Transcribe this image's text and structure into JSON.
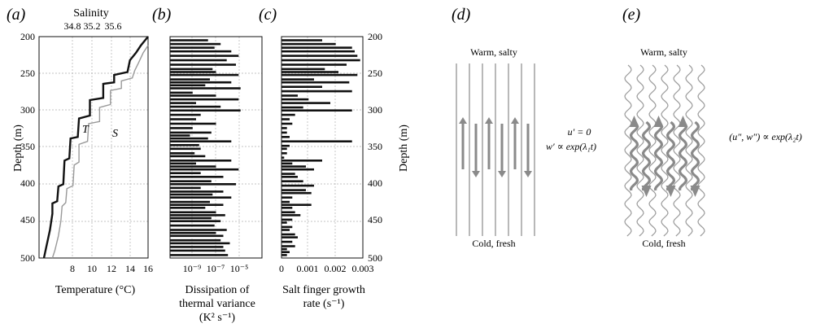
{
  "panels": {
    "a": {
      "letter": "(a)",
      "top_title": "Salinity",
      "top_ticks": [
        "34.8",
        "35.2",
        "35.6"
      ],
      "y_label": "Depth (m)",
      "y_ticks": [
        "200",
        "250",
        "300",
        "350",
        "400",
        "450",
        "500"
      ],
      "x_ticks": [
        "8",
        "10",
        "12",
        "14",
        "16"
      ],
      "x_label": "Temperature (°C)",
      "label_T": "T",
      "label_S": "S"
    },
    "b": {
      "letter": "(b)",
      "x_ticks": [
        "10⁻⁹",
        "10⁻⁷",
        "10⁻⁵"
      ],
      "x_label_line1": "Dissipation of",
      "x_label_line2": "thermal variance",
      "x_label_line3": "(K² s⁻¹)"
    },
    "c": {
      "letter": "(c)",
      "x_ticks": [
        "0",
        "0.001",
        "0.002",
        "0.003"
      ],
      "x_label_line1": "Salt finger growth",
      "x_label_line2": "rate (s⁻¹)",
      "y_label": "Depth (m)",
      "y_ticks": [
        "200",
        "250",
        "300",
        "350",
        "400",
        "450",
        "500"
      ]
    },
    "d": {
      "letter": "(d)",
      "top_text": "Warm, salty",
      "bottom_text": "Cold, fresh",
      "eq1": "u′ = 0",
      "eq2": "w′ ∝ exp(λ₁t)"
    },
    "e": {
      "letter": "(e)",
      "top_text": "Warm, salty",
      "bottom_text": "Cold, fresh",
      "eq1": "(u″, w″) ∝ exp(λ₂t)"
    }
  },
  "chart_data": [
    {
      "type": "line",
      "panel": "a",
      "xlim": [
        7,
        16
      ],
      "ylim": [
        500,
        200
      ],
      "grid": true,
      "series": [
        {
          "name": "T",
          "color": "#111111",
          "points": [
            [
              16,
              200
            ],
            [
              15.4,
              212
            ],
            [
              15,
              222
            ],
            [
              14.5,
              232
            ],
            [
              14.3,
              248
            ],
            [
              13.2,
              252
            ],
            [
              13.2,
              262
            ],
            [
              12.3,
              264
            ],
            [
              12.3,
              283
            ],
            [
              11.2,
              286
            ],
            [
              11.2,
              307
            ],
            [
              10.3,
              311
            ],
            [
              10.2,
              336
            ],
            [
              9.6,
              338
            ],
            [
              9.5,
              365
            ],
            [
              9.1,
              368
            ],
            [
              9,
              400
            ],
            [
              8.6,
              403
            ],
            [
              8.5,
              423
            ],
            [
              8.1,
              426
            ],
            [
              8.1,
              440
            ],
            [
              7.9,
              462
            ],
            [
              7.6,
              485
            ],
            [
              7.4,
              500
            ]
          ]
        },
        {
          "name": "S",
          "color": "#999999",
          "points": [
            [
              16,
              212
            ],
            [
              15.6,
              222
            ],
            [
              15.2,
              236
            ],
            [
              14.9,
              246
            ],
            [
              14.7,
              256
            ],
            [
              13.8,
              260
            ],
            [
              13.8,
              270
            ],
            [
              12.9,
              273
            ],
            [
              12.9,
              292
            ],
            [
              12,
              296
            ],
            [
              12,
              315
            ],
            [
              11.1,
              318
            ],
            [
              11,
              342
            ],
            [
              10.3,
              346
            ],
            [
              10.3,
              370
            ],
            [
              9.9,
              374
            ],
            [
              9.8,
              402
            ],
            [
              9.3,
              406
            ],
            [
              9.2,
              425
            ],
            [
              8.9,
              430
            ],
            [
              8.8,
              450
            ],
            [
              8.6,
              470
            ],
            [
              8.3,
              490
            ],
            [
              8.1,
              500
            ]
          ]
        }
      ]
    },
    {
      "type": "bar",
      "panel": "b",
      "orientation": "horizontal",
      "x_scale": "log",
      "xlim": [
        1e-10,
        0.0001
      ],
      "ylim": [
        500,
        200
      ],
      "bars": [
        [
          205,
          3e-08
        ],
        [
          210,
          2e-07
        ],
        [
          215,
          8e-08
        ],
        [
          220,
          1e-06
        ],
        [
          226,
          3e-06
        ],
        [
          232,
          5e-07
        ],
        [
          238,
          2e-06
        ],
        [
          244,
          6e-08
        ],
        [
          248,
          1e-07
        ],
        [
          252,
          3e-06
        ],
        [
          258,
          4e-08
        ],
        [
          262,
          1e-06
        ],
        [
          266,
          2e-08
        ],
        [
          270,
          4e-06
        ],
        [
          276,
          3e-09
        ],
        [
          280,
          1e-07
        ],
        [
          285,
          3e-06
        ],
        [
          290,
          5e-09
        ],
        [
          295,
          2e-07
        ],
        [
          300,
          4e-06
        ],
        [
          306,
          1e-08
        ],
        [
          312,
          5e-09
        ],
        [
          318,
          1e-07
        ],
        [
          324,
          3e-09
        ],
        [
          330,
          5e-08
        ],
        [
          334,
          2e-09
        ],
        [
          338,
          3e-08
        ],
        [
          342,
          1e-06
        ],
        [
          347,
          8e-09
        ],
        [
          352,
          1e-08
        ],
        [
          358,
          4e-09
        ],
        [
          362,
          2e-08
        ],
        [
          368,
          1e-06
        ],
        [
          372,
          5e-09
        ],
        [
          376,
          1e-07
        ],
        [
          380,
          3e-06
        ],
        [
          385,
          1e-08
        ],
        [
          390,
          3e-07
        ],
        [
          396,
          5e-08
        ],
        [
          400,
          2e-06
        ],
        [
          405,
          1e-08
        ],
        [
          410,
          3e-07
        ],
        [
          414,
          6e-08
        ],
        [
          418,
          1e-06
        ],
        [
          424,
          4e-08
        ],
        [
          428,
          3e-07
        ],
        [
          432,
          2e-08
        ],
        [
          438,
          1e-07
        ],
        [
          442,
          4e-07
        ],
        [
          446,
          5e-08
        ],
        [
          450,
          2e-07
        ],
        [
          456,
          8e-08
        ],
        [
          462,
          5e-07
        ],
        [
          466,
          1e-07
        ],
        [
          470,
          3e-07
        ],
        [
          476,
          2e-07
        ],
        [
          480,
          8e-07
        ],
        [
          485,
          3e-07
        ],
        [
          490,
          4e-07
        ],
        [
          496,
          6e-07
        ]
      ]
    },
    {
      "type": "bar",
      "panel": "c",
      "orientation": "horizontal",
      "xlim": [
        0,
        0.003
      ],
      "ylim": [
        500,
        200
      ],
      "bars": [
        [
          205,
          0.0015
        ],
        [
          210,
          0.002
        ],
        [
          215,
          0.0026
        ],
        [
          220,
          0.0027
        ],
        [
          226,
          0.0028
        ],
        [
          232,
          0.0029
        ],
        [
          238,
          0.0024
        ],
        [
          244,
          0.0016
        ],
        [
          248,
          0.0021
        ],
        [
          252,
          0.0028
        ],
        [
          258,
          0.0012
        ],
        [
          262,
          0.0025
        ],
        [
          268,
          0.0015
        ],
        [
          274,
          0.0026
        ],
        [
          280,
          0.0006
        ],
        [
          285,
          0.001
        ],
        [
          290,
          0.0018
        ],
        [
          296,
          0.0008
        ],
        [
          300,
          0.0026
        ],
        [
          306,
          0.0005
        ],
        [
          312,
          0.0003
        ],
        [
          318,
          0.0004
        ],
        [
          324,
          0.0002
        ],
        [
          330,
          0.0002
        ],
        [
          336,
          0.0003
        ],
        [
          342,
          0.0026
        ],
        [
          348,
          0.0003
        ],
        [
          352,
          0.0002
        ],
        [
          358,
          0.0002
        ],
        [
          364,
          0.0001
        ],
        [
          368,
          0.0015
        ],
        [
          372,
          0.0004
        ],
        [
          376,
          0.0009
        ],
        [
          380,
          0.0012
        ],
        [
          386,
          0.0005
        ],
        [
          390,
          0.0006
        ],
        [
          396,
          0.0008
        ],
        [
          402,
          0.0012
        ],
        [
          408,
          0.0009
        ],
        [
          412,
          0.0011
        ],
        [
          418,
          0.0004
        ],
        [
          424,
          0.0003
        ],
        [
          428,
          0.0011
        ],
        [
          432,
          0.0004
        ],
        [
          438,
          0.0005
        ],
        [
          442,
          0.0007
        ],
        [
          448,
          0.0004
        ],
        [
          452,
          0.0002
        ],
        [
          458,
          0.0004
        ],
        [
          462,
          0.0003
        ],
        [
          468,
          0.0005
        ],
        [
          472,
          0.0006
        ],
        [
          478,
          0.0004
        ],
        [
          484,
          0.0005
        ],
        [
          488,
          0.0002
        ],
        [
          492,
          0.0003
        ],
        [
          496,
          0.0002
        ]
      ]
    }
  ]
}
